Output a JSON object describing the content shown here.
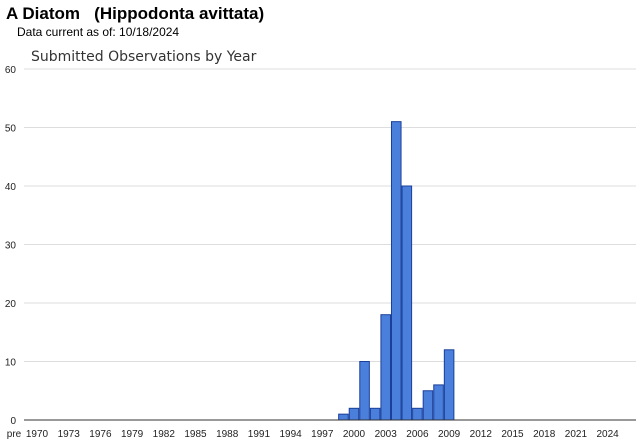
{
  "header": {
    "title": "A Diatom   (Hippodonta avittata)",
    "subtitle": "Data current as of: 10/18/2024"
  },
  "colors": {
    "bar_fill": "#4a7fdc",
    "bar_stroke": "#1a3f99",
    "gridline": "#dddddd",
    "axis": "#333333"
  },
  "chart_data": {
    "type": "bar",
    "title": "Submitted Observations by Year",
    "xlabel": "",
    "ylabel": "",
    "ylim": [
      0,
      60
    ],
    "yticks": [
      0,
      10,
      20,
      30,
      40,
      50,
      60
    ],
    "grid": true,
    "categories": [
      "pre 1970",
      "1970",
      "1971",
      "1972",
      "1973",
      "1974",
      "1975",
      "1976",
      "1977",
      "1978",
      "1979",
      "1980",
      "1981",
      "1982",
      "1983",
      "1984",
      "1985",
      "1986",
      "1987",
      "1988",
      "1989",
      "1990",
      "1991",
      "1992",
      "1993",
      "1994",
      "1995",
      "1996",
      "1997",
      "1998",
      "1999",
      "2000",
      "2001",
      "2002",
      "2003",
      "2004",
      "2005",
      "2006",
      "2007",
      "2008",
      "2009",
      "2010",
      "2011",
      "2012",
      "2013",
      "2014",
      "2015",
      "2016",
      "2017",
      "2018",
      "2019",
      "2020",
      "2021",
      "2022",
      "2023",
      "2024"
    ],
    "values": [
      0,
      0,
      0,
      0,
      0,
      0,
      0,
      0,
      0,
      0,
      0,
      0,
      0,
      0,
      0,
      0,
      0,
      0,
      0,
      0,
      0,
      0,
      0,
      0,
      0,
      0,
      0,
      0,
      0,
      0,
      1,
      2,
      10,
      2,
      18,
      51,
      40,
      2,
      5,
      6,
      12,
      0,
      0,
      0,
      0,
      0,
      0,
      0,
      0,
      0,
      0,
      0,
      0,
      0,
      0,
      0
    ],
    "xtick_labels": [
      "pre",
      "1970",
      "1973",
      "1976",
      "1979",
      "1982",
      "1985",
      "1988",
      "1991",
      "1994",
      "1997",
      "2000",
      "2003",
      "2006",
      "2009",
      "2012",
      "2015",
      "2018",
      "2021",
      "2024"
    ]
  }
}
